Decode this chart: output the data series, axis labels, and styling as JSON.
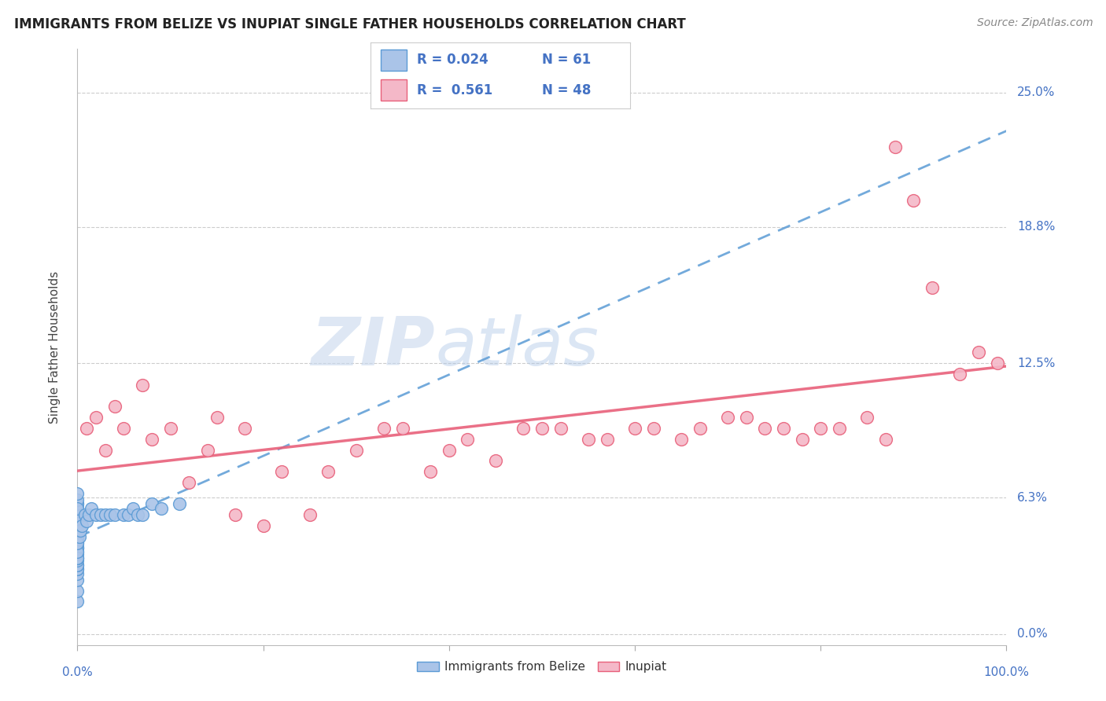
{
  "title": "IMMIGRANTS FROM BELIZE VS INUPIAT SINGLE FATHER HOUSEHOLDS CORRELATION CHART",
  "source": "Source: ZipAtlas.com",
  "ylabel": "Single Father Households",
  "ytick_labels": [
    "0.0%",
    "6.3%",
    "12.5%",
    "18.8%",
    "25.0%"
  ],
  "ytick_values": [
    0.0,
    6.3,
    12.5,
    18.8,
    25.0
  ],
  "xlim": [
    0.0,
    100.0
  ],
  "ylim": [
    -0.5,
    27.0
  ],
  "legend_belize_R": "0.024",
  "legend_belize_N": "61",
  "legend_inupiat_R": "0.561",
  "legend_inupiat_N": "48",
  "belize_color": "#aac4e8",
  "inupiat_color": "#f4b8c8",
  "belize_edge_color": "#5b9bd5",
  "inupiat_edge_color": "#e8607a",
  "belize_line_color": "#5b9bd5",
  "inupiat_line_color": "#e8607a",
  "belize_x": [
    0.0,
    0.0,
    0.0,
    0.0,
    0.0,
    0.0,
    0.0,
    0.0,
    0.0,
    0.0,
    0.0,
    0.0,
    0.0,
    0.0,
    0.0,
    0.0,
    0.0,
    0.0,
    0.0,
    0.0,
    0.0,
    0.0,
    0.0,
    0.0,
    0.0,
    0.0,
    0.0,
    0.0,
    0.0,
    0.0,
    0.0,
    0.0,
    0.0,
    0.0,
    0.0,
    0.0,
    0.0,
    0.0,
    0.0,
    0.0,
    0.0,
    0.2,
    0.3,
    0.5,
    0.8,
    1.0,
    1.2,
    1.5,
    2.0,
    2.5,
    3.0,
    3.5,
    4.0,
    5.0,
    5.5,
    6.0,
    6.5,
    7.0,
    8.0,
    9.0,
    11.0
  ],
  "belize_y": [
    1.5,
    2.0,
    2.5,
    2.8,
    3.0,
    3.0,
    3.2,
    3.2,
    3.4,
    3.5,
    3.5,
    3.7,
    3.8,
    4.0,
    4.0,
    4.0,
    4.2,
    4.3,
    4.5,
    4.5,
    4.7,
    4.8,
    5.0,
    5.0,
    5.0,
    5.2,
    5.3,
    5.5,
    5.5,
    5.7,
    5.8,
    6.0,
    6.0,
    6.2,
    3.5,
    3.8,
    4.2,
    4.8,
    5.3,
    5.8,
    6.5,
    4.5,
    4.8,
    5.0,
    5.5,
    5.2,
    5.5,
    5.8,
    5.5,
    5.5,
    5.5,
    5.5,
    5.5,
    5.5,
    5.5,
    5.8,
    5.5,
    5.5,
    6.0,
    5.8,
    6.0
  ],
  "inupiat_x": [
    1.0,
    2.0,
    3.0,
    4.0,
    5.0,
    7.0,
    8.0,
    10.0,
    12.0,
    14.0,
    15.0,
    17.0,
    18.0,
    20.0,
    22.0,
    25.0,
    27.0,
    30.0,
    33.0,
    35.0,
    38.0,
    40.0,
    42.0,
    45.0,
    48.0,
    50.0,
    52.0,
    55.0,
    57.0,
    60.0,
    62.0,
    65.0,
    67.0,
    70.0,
    72.0,
    74.0,
    76.0,
    78.0,
    80.0,
    82.0,
    85.0,
    87.0,
    88.0,
    90.0,
    92.0,
    95.0,
    97.0,
    99.0
  ],
  "inupiat_y": [
    9.5,
    10.0,
    8.5,
    10.5,
    9.5,
    11.5,
    9.0,
    9.5,
    7.0,
    8.5,
    10.0,
    5.5,
    9.5,
    5.0,
    7.5,
    5.5,
    7.5,
    8.5,
    9.5,
    9.5,
    7.5,
    8.5,
    9.0,
    8.0,
    9.5,
    9.5,
    9.5,
    9.0,
    9.0,
    9.5,
    9.5,
    9.0,
    9.5,
    10.0,
    10.0,
    9.5,
    9.5,
    9.0,
    9.5,
    9.5,
    10.0,
    9.0,
    22.5,
    20.0,
    16.0,
    12.0,
    13.0,
    12.5
  ],
  "watermark_zip": "ZIP",
  "watermark_atlas": "atlas",
  "background_color": "#ffffff",
  "grid_color": "#cccccc",
  "grid_linestyle": "--",
  "title_fontsize": 12,
  "axis_label_color": "#4472c4",
  "axis_label_fontsize": 11
}
